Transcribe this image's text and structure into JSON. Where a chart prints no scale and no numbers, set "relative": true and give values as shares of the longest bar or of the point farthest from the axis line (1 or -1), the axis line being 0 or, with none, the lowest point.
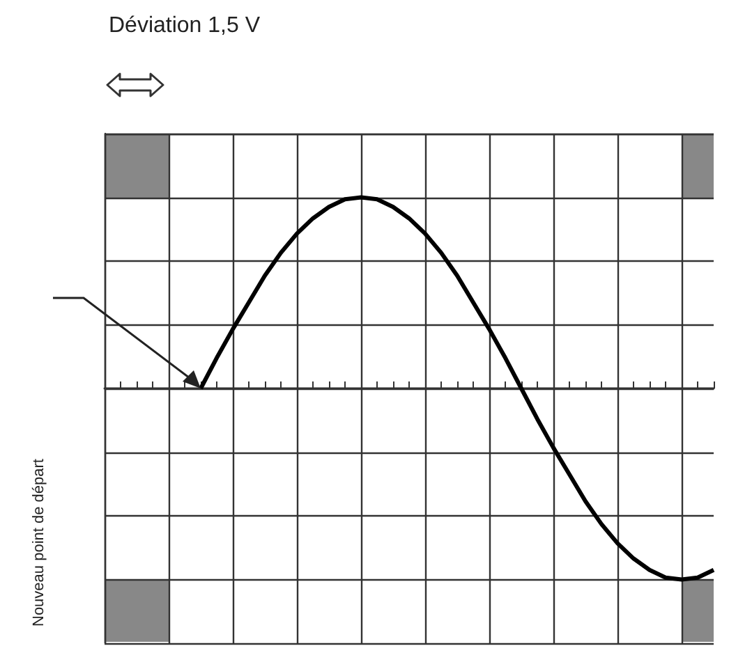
{
  "chart_data": {
    "type": "line",
    "relative": true,
    "grid": true,
    "marker": "none",
    "line_style": "solid",
    "annotations": [
      "Déviation 1,5 V",
      "Nouveau point de départ"
    ],
    "categories": [
      null,
      null,
      null,
      null,
      null,
      null,
      null,
      null,
      null,
      null,
      null,
      null,
      null,
      null,
      null,
      null,
      null,
      null,
      null,
      null,
      null,
      null,
      null,
      null,
      null,
      null,
      null,
      null,
      null,
      null,
      null,
      null,
      null,
      null,
      null,
      null,
      null,
      null,
      null
    ],
    "series": [
      {
        "color": "#000000",
        "values": [
          null,
          null,
          null,
          null,
          null,
          null,
          0,
          0.16,
          0.31,
          0.45,
          0.59,
          0.71,
          0.81,
          0.89,
          0.95,
          0.99,
          1,
          0.99,
          0.95,
          0.89,
          0.81,
          0.71,
          0.59,
          0.45,
          0.31,
          0.16,
          0,
          -0.16,
          -0.31,
          -0.45,
          -0.59,
          -0.71,
          -0.81,
          -0.89,
          -0.95,
          -0.99,
          -1,
          -0.99,
          -0.95
        ]
      }
    ]
  }
}
